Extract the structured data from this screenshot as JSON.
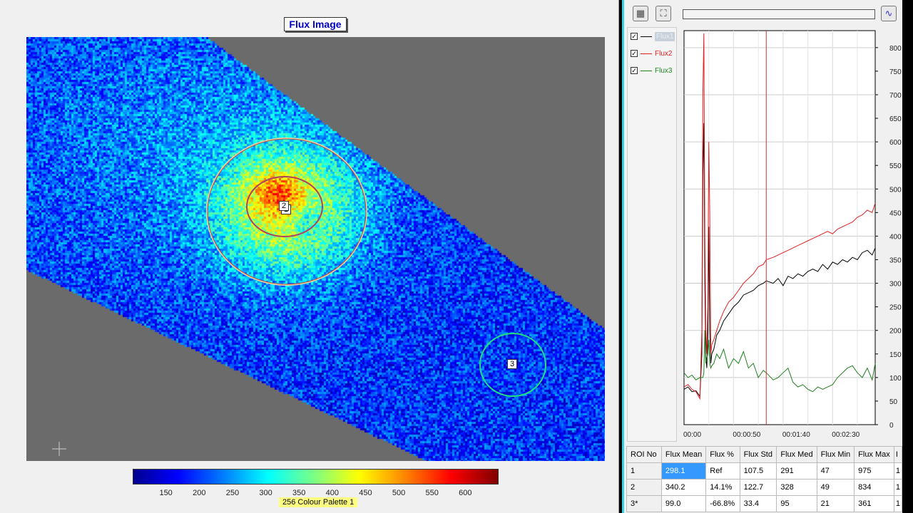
{
  "image_panel": {
    "title": "Flux Image",
    "roi_labels": [
      "1",
      "2",
      "3"
    ],
    "colorbar": {
      "ticks": [
        "150",
        "200",
        "250",
        "300",
        "350",
        "400",
        "450",
        "500",
        "550",
        "600"
      ],
      "palette_label": "256 Colour Palette 1",
      "range": [
        100,
        650
      ]
    }
  },
  "toolbar": {
    "icons": [
      "grid-icon",
      "fit-icon",
      "waveform-icon"
    ]
  },
  "legend": [
    {
      "label": "Flux1",
      "color": "#000000",
      "checked": true,
      "selected": true
    },
    {
      "label": "Flux2",
      "color": "#e02020",
      "checked": true
    },
    {
      "label": "Flux3",
      "color": "#208020",
      "checked": true
    }
  ],
  "chart_data": {
    "type": "line",
    "xlabel": "",
    "ylabel": "",
    "x_ticks": [
      "00:00",
      "00:00:50",
      "00:01:40",
      "00:02:30"
    ],
    "y_ticks": [
      "0",
      "50",
      "100",
      "150",
      "200",
      "250",
      "300",
      "350",
      "400",
      "450",
      "500",
      "550",
      "600",
      "650",
      "700",
      "750",
      "800"
    ],
    "xlim_seconds": [
      0,
      193
    ],
    "ylim": [
      0,
      836
    ],
    "grid": true,
    "marker_line_seconds": 83,
    "x_seconds": [
      0,
      4,
      8,
      12,
      16,
      18,
      19,
      20,
      21,
      22,
      23,
      24,
      25,
      26,
      27,
      28,
      30,
      33,
      36,
      40,
      45,
      50,
      55,
      60,
      65,
      70,
      75,
      80,
      83,
      90,
      95,
      100,
      105,
      110,
      115,
      120,
      125,
      130,
      135,
      140,
      145,
      150,
      155,
      160,
      165,
      170,
      175,
      180,
      185,
      190,
      193
    ],
    "series": [
      {
        "name": "Flux1",
        "color": "#000000",
        "values": [
          75,
          80,
          70,
          72,
          60,
          150,
          530,
          640,
          300,
          150,
          120,
          180,
          420,
          200,
          130,
          150,
          160,
          190,
          200,
          220,
          235,
          250,
          260,
          275,
          280,
          285,
          295,
          300,
          305,
          300,
          310,
          295,
          315,
          310,
          320,
          315,
          325,
          330,
          325,
          340,
          330,
          345,
          340,
          350,
          345,
          355,
          350,
          365,
          370,
          360,
          375
        ]
      },
      {
        "name": "Flux2",
        "color": "#e02020",
        "values": [
          80,
          85,
          75,
          70,
          55,
          200,
          700,
          830,
          400,
          200,
          150,
          250,
          600,
          450,
          150,
          170,
          180,
          200,
          220,
          240,
          260,
          270,
          285,
          300,
          310,
          320,
          335,
          340,
          350,
          355,
          360,
          365,
          370,
          375,
          380,
          385,
          390,
          395,
          400,
          405,
          410,
          405,
          415,
          420,
          425,
          430,
          440,
          445,
          455,
          450,
          470
        ]
      },
      {
        "name": "Flux3",
        "color": "#208020",
        "values": [
          110,
          100,
          105,
          95,
          100,
          100,
          100,
          110,
          200,
          130,
          140,
          150,
          180,
          130,
          120,
          125,
          130,
          150,
          140,
          160,
          120,
          140,
          130,
          155,
          120,
          130,
          100,
          115,
          110,
          95,
          100,
          110,
          120,
          90,
          80,
          85,
          75,
          70,
          80,
          75,
          80,
          85,
          100,
          110,
          120,
          125,
          110,
          100,
          120,
          95,
          130
        ]
      }
    ]
  },
  "table": {
    "headers": [
      "ROI No",
      "Flux Mean",
      "Flux %",
      "Flux Std",
      "Flux Med",
      "Flux Min",
      "Flux Max",
      "I"
    ],
    "rows": [
      [
        "1",
        "298.1",
        "Ref",
        "107.5",
        "291",
        "47",
        "975",
        "1"
      ],
      [
        "2",
        "340.2",
        "14.1%",
        "122.7",
        "328",
        "49",
        "834",
        "1"
      ],
      [
        "3*",
        "99.0",
        "-66.8%",
        "33.4",
        "95",
        "21",
        "361",
        "1"
      ]
    ]
  }
}
